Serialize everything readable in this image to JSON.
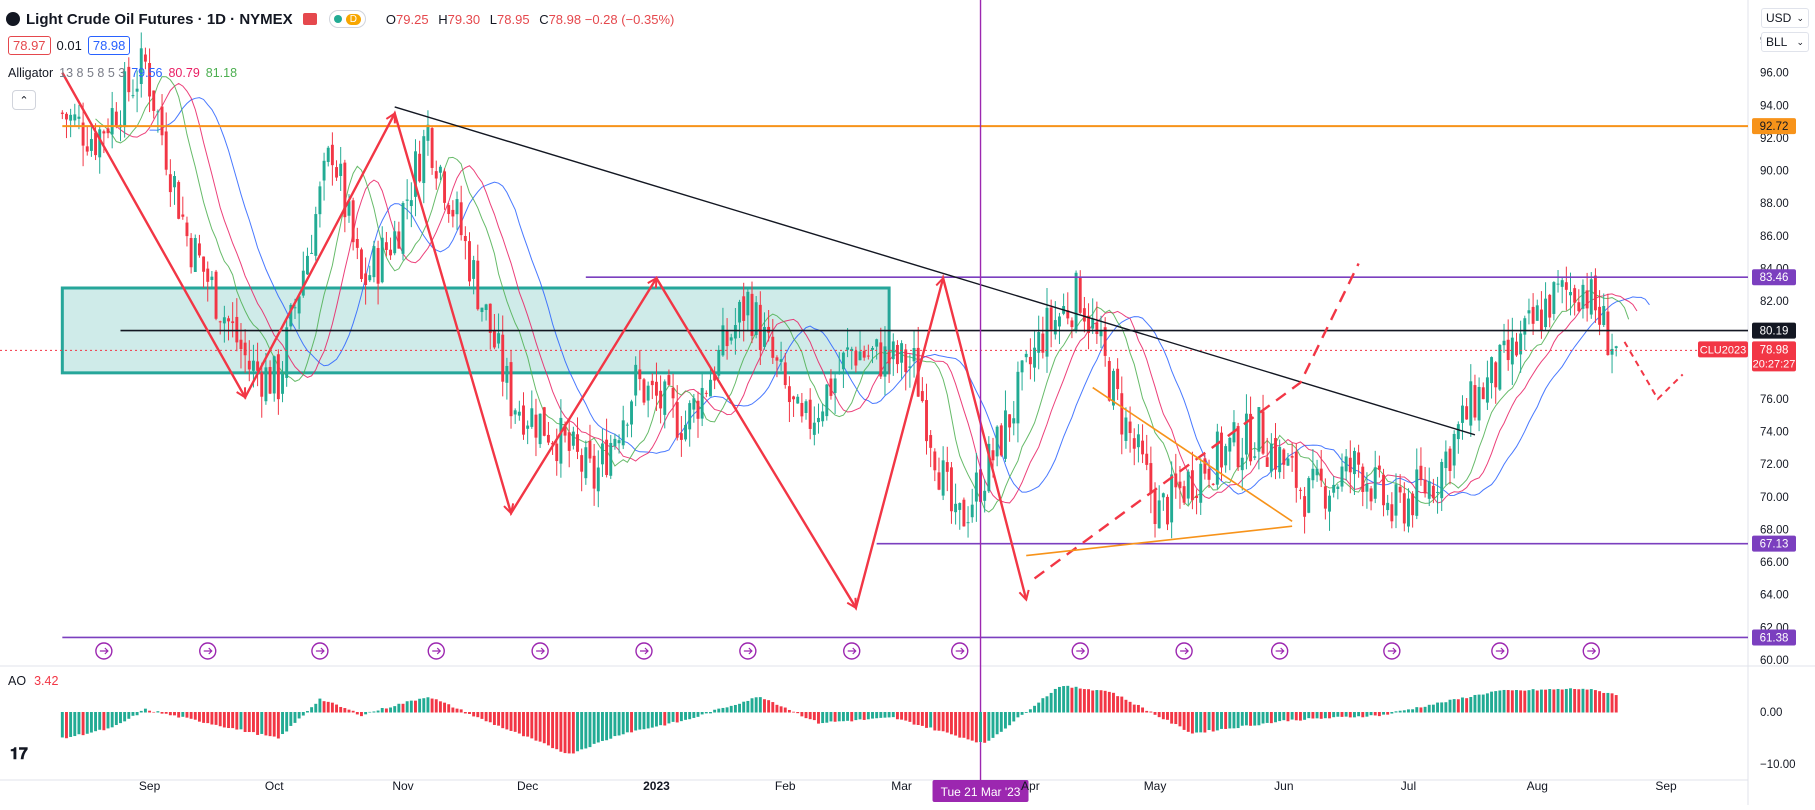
{
  "header": {
    "title": "Light Crude Oil Futures · 1D · NYMEX",
    "session_badge": "D",
    "ohlc": [
      {
        "k": "O",
        "v": "79.25"
      },
      {
        "k": "H",
        "v": "79.30"
      },
      {
        "k": "L",
        "v": "78.95"
      },
      {
        "k": "C",
        "v": "78.98 −0.28 (−0.35%)"
      }
    ],
    "bid": "78.97",
    "spread": "0.01",
    "ask": "78.98"
  },
  "indicators": {
    "alligator_name": "Alligator",
    "alligator_params": "13 8 5 8 5 3",
    "alligator_values": [
      {
        "v": "79.56",
        "color": "#2962ff"
      },
      {
        "v": "80.79",
        "color": "#e91e63"
      },
      {
        "v": "81.18",
        "color": "#4caf50"
      }
    ],
    "ao_name": "AO",
    "ao_value": "3.42"
  },
  "toolbar": {
    "currency": "USD",
    "unit": "BLL"
  },
  "colors": {
    "up": "#22ab94",
    "down": "#f23645",
    "level": "#7b3fbf",
    "orange": "#f7931a",
    "zone": "#26a69a"
  },
  "chart_data": {
    "type": "candlestick",
    "price_axis": {
      "min": 60,
      "max": 98,
      "ticks": [
        "98.00",
        "96.00",
        "94.00",
        "92.00",
        "90.00",
        "88.00",
        "86.00",
        "84.00",
        "82.00",
        "80.00",
        "78.00",
        "76.00",
        "74.00",
        "72.00",
        "70.00",
        "68.00",
        "66.00",
        "64.00",
        "62.00",
        "60.00"
      ]
    },
    "time_labels": [
      {
        "label": "Sep",
        "day": 21,
        "bold": false
      },
      {
        "label": "Oct",
        "day": 51,
        "bold": false
      },
      {
        "label": "Nov",
        "day": 82,
        "bold": false
      },
      {
        "label": "Dec",
        "day": 112,
        "bold": false
      },
      {
        "label": "2023",
        "day": 143,
        "bold": true
      },
      {
        "label": "Feb",
        "day": 174,
        "bold": false
      },
      {
        "label": "Mar",
        "day": 202,
        "bold": false
      },
      {
        "label": "Apr",
        "day": 233,
        "bold": false
      },
      {
        "label": "May",
        "day": 263,
        "bold": false
      },
      {
        "label": "Jun",
        "day": 294,
        "bold": false
      },
      {
        "label": "Jul",
        "day": 324,
        "bold": false
      },
      {
        "label": "Aug",
        "day": 355,
        "bold": false
      },
      {
        "label": "Sep",
        "day": 386,
        "bold": false
      }
    ],
    "crosshair": {
      "label": "Tue 21 Mar '23",
      "day": 221
    },
    "price_labels": [
      {
        "text": "92.72",
        "price": 92.72,
        "color": "#f7931a"
      },
      {
        "text": "83.46",
        "price": 83.46,
        "color": "#7b3fbf"
      },
      {
        "text": "80.19",
        "price": 80.19,
        "color": "#131722"
      },
      {
        "text": "67.13",
        "price": 67.13,
        "color": "#7b3fbf"
      },
      {
        "text": "61.38",
        "price": 61.38,
        "color": "#7b3fbf"
      }
    ],
    "last_price": {
      "symbol": "CLU2023",
      "price_text": "78.98",
      "price": 78.98,
      "countdown": "20:27:27",
      "color": "#f23645"
    },
    "ao_axis": {
      "ticks": [
        {
          "label": "0.00",
          "v": 0
        },
        {
          "label": "−10.00",
          "v": -10
        }
      ]
    },
    "anchors": [
      {
        "day": 0,
        "price": 93.5
      },
      {
        "day": 8,
        "price": 92
      },
      {
        "day": 20,
        "price": 96.5
      },
      {
        "day": 30,
        "price": 86
      },
      {
        "day": 45,
        "price": 78
      },
      {
        "day": 52,
        "price": 77
      },
      {
        "day": 58,
        "price": 84
      },
      {
        "day": 65,
        "price": 91.5
      },
      {
        "day": 72,
        "price": 83
      },
      {
        "day": 80,
        "price": 86
      },
      {
        "day": 88,
        "price": 92.5
      },
      {
        "day": 95,
        "price": 87
      },
      {
        "day": 108,
        "price": 76
      },
      {
        "day": 118,
        "price": 74
      },
      {
        "day": 128,
        "price": 71
      },
      {
        "day": 138,
        "price": 77
      },
      {
        "day": 150,
        "price": 74.5
      },
      {
        "day": 165,
        "price": 82
      },
      {
        "day": 178,
        "price": 74
      },
      {
        "day": 190,
        "price": 79
      },
      {
        "day": 205,
        "price": 78
      },
      {
        "day": 215,
        "price": 68
      },
      {
        "day": 225,
        "price": 73
      },
      {
        "day": 236,
        "price": 80
      },
      {
        "day": 245,
        "price": 82.5
      },
      {
        "day": 255,
        "price": 75
      },
      {
        "day": 264,
        "price": 69
      },
      {
        "day": 275,
        "price": 72
      },
      {
        "day": 288,
        "price": 74
      },
      {
        "day": 300,
        "price": 70
      },
      {
        "day": 312,
        "price": 72
      },
      {
        "day": 320,
        "price": 69
      },
      {
        "day": 330,
        "price": 71
      },
      {
        "day": 340,
        "price": 76
      },
      {
        "day": 350,
        "price": 79
      },
      {
        "day": 358,
        "price": 82
      },
      {
        "day": 366,
        "price": 83
      },
      {
        "day": 374,
        "price": 79
      }
    ],
    "ao_anchors": [
      {
        "day": 0,
        "v": -5
      },
      {
        "day": 12,
        "v": -3
      },
      {
        "day": 20,
        "v": 0.5
      },
      {
        "day": 35,
        "v": -2
      },
      {
        "day": 52,
        "v": -5
      },
      {
        "day": 62,
        "v": 2.5
      },
      {
        "day": 72,
        "v": -0.5
      },
      {
        "day": 88,
        "v": 3
      },
      {
        "day": 100,
        "v": -1
      },
      {
        "day": 122,
        "v": -8
      },
      {
        "day": 135,
        "v": -4
      },
      {
        "day": 150,
        "v": -1.5
      },
      {
        "day": 168,
        "v": 3
      },
      {
        "day": 182,
        "v": -2
      },
      {
        "day": 200,
        "v": -1
      },
      {
        "day": 222,
        "v": -6
      },
      {
        "day": 240,
        "v": 5
      },
      {
        "day": 252,
        "v": 4
      },
      {
        "day": 272,
        "v": -4
      },
      {
        "day": 295,
        "v": -1.5
      },
      {
        "day": 318,
        "v": -0.5
      },
      {
        "day": 345,
        "v": 4
      },
      {
        "day": 366,
        "v": 4.5
      },
      {
        "day": 374,
        "v": 3.42
      }
    ],
    "zone": {
      "day_start": 0,
      "day_end": 199,
      "price_top": 82.8,
      "price_bottom": 77.6,
      "mid": 80.19
    },
    "hlines": [
      {
        "price": 92.72,
        "day_start": 0,
        "day_end": 405,
        "color": "#f7931a"
      },
      {
        "price": 83.46,
        "day_start": 126,
        "day_end": 405,
        "color": "#7b3fbf"
      },
      {
        "price": 80.19,
        "day_start": 14,
        "day_end": 405,
        "color": "#131722"
      },
      {
        "price": 67.13,
        "day_start": 196,
        "day_end": 405,
        "color": "#7b3fbf"
      },
      {
        "price": 61.38,
        "day_start": 0,
        "day_end": 405,
        "color": "#7b3fbf"
      }
    ],
    "trendline": [
      {
        "day": 80,
        "price": 93.9
      },
      {
        "day": 340,
        "price": 73.8
      }
    ],
    "zigzag": [
      {
        "day": 0,
        "price": 96
      },
      {
        "day": 44,
        "price": 76.1
      },
      {
        "day": 80,
        "price": 93.5
      },
      {
        "day": 108,
        "price": 69
      },
      {
        "day": 143,
        "price": 83.4
      },
      {
        "day": 191,
        "price": 63.2
      },
      {
        "day": 212,
        "price": 83.4
      },
      {
        "day": 232,
        "price": 63.7
      }
    ],
    "dashed_path": [
      {
        "day": 234,
        "price": 65
      },
      {
        "day": 298,
        "price": 77
      },
      {
        "day": 312,
        "price": 84.3
      }
    ],
    "triangle_upper": [
      {
        "day": 248,
        "price": 76.7
      },
      {
        "day": 296,
        "price": 68.5
      }
    ],
    "triangle_lower": [
      {
        "day": 232,
        "price": 66.4
      },
      {
        "day": 296,
        "price": 68.2
      }
    ],
    "cycle_days": [
      10,
      35,
      62,
      90,
      115,
      140,
      165,
      190,
      216,
      245,
      270,
      293,
      320,
      346,
      368
    ]
  }
}
